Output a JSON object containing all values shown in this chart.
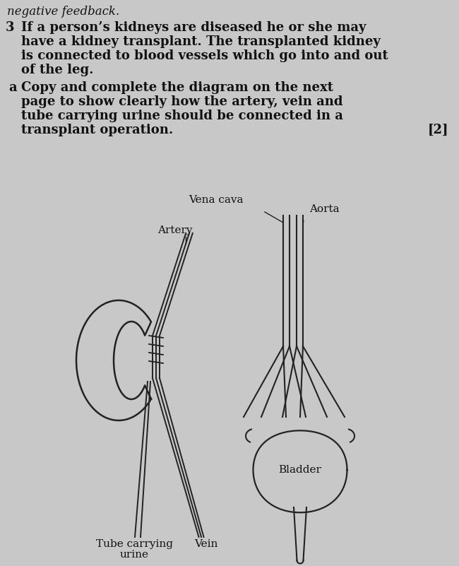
{
  "background_color": "#c8c8c8",
  "text_color": "#111111",
  "title_line1": "negative feedback.",
  "question_number": "3",
  "question_text1": "If a person’s kidneys are diseased he or she may",
  "question_text2": "have a kidney transplant. The transplanted kidney",
  "question_text3": "is connected to blood vessels which go into and out",
  "question_text4": "of the leg.",
  "part_a_label": "a",
  "part_a_text1": "Copy and complete the diagram on the next",
  "part_a_text2": "page to show clearly how the artery, vein and",
  "part_a_text3": "tube carrying urine should be connected in a",
  "part_a_text4": "transplant operation.",
  "marks": "[2]",
  "label_vena_cava": "Vena cava",
  "label_artery": "Artery",
  "label_aorta": "Aorta",
  "label_bladder": "Bladder",
  "label_tube": "Tube carrying",
  "label_urine": "urine",
  "label_vein": "Vein",
  "line_color": "#222222",
  "font_size_body": 13,
  "font_size_label": 11
}
